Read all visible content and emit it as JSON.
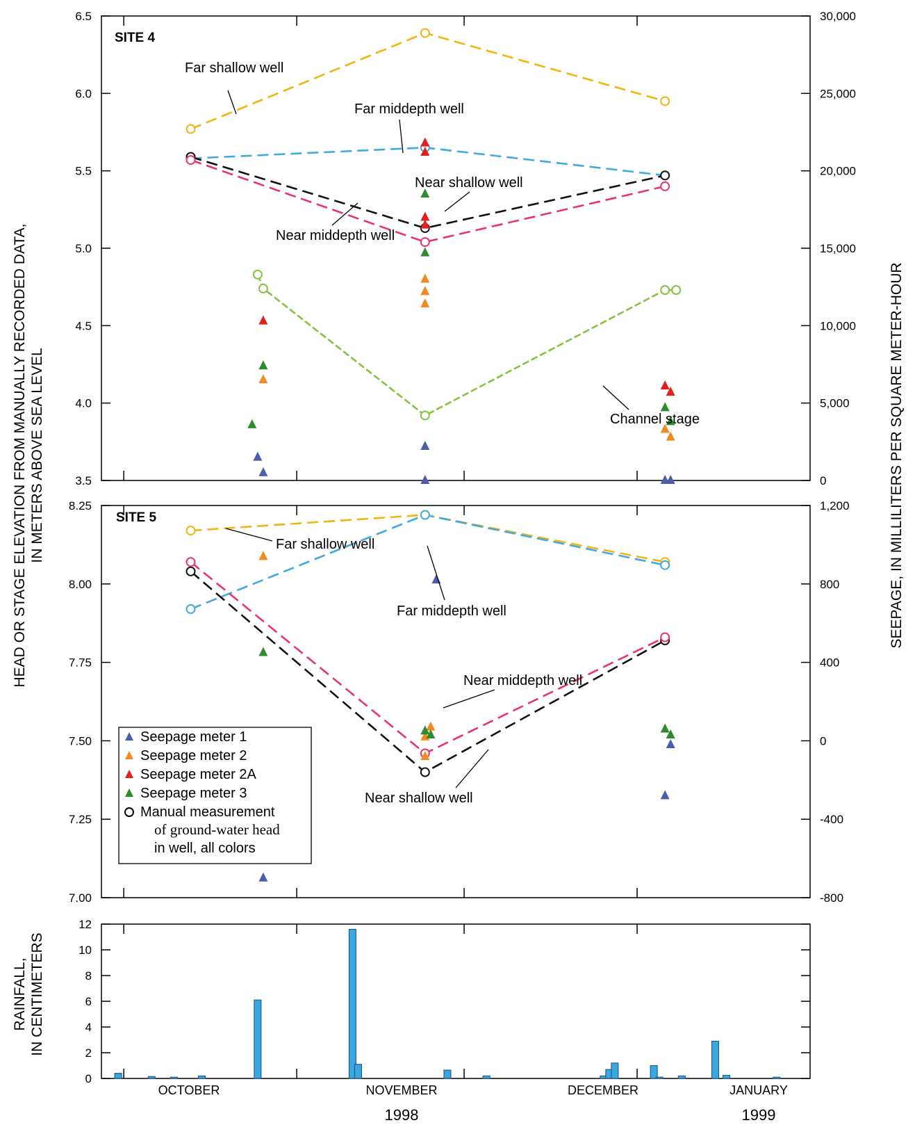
{
  "colors": {
    "far_shallow": "#f2b411",
    "far_middepth": "#3fa9e0",
    "near_shallow": "#111111",
    "near_middepth": "#e8336b",
    "channel": "#84c341",
    "meter1": "#4a5fa8",
    "meter2": "#f28a1c",
    "meter2a": "#e4201e",
    "meter3": "#2f8a2f",
    "rain_bar": "#3aa7de"
  },
  "axes": {
    "left_title_line1": "HEAD OR STAGE ELEVATION FROM MANUALLY RECORDED DATA,",
    "left_title_line2": "IN METERS ABOVE SEA LEVEL",
    "right_title": "SEEPAGE, IN MILLILITERS PER SQUARE METER-HOUR",
    "rain_title_line1": "RAINFALL,",
    "rain_title_line2": "IN CENTIMETERS",
    "months": [
      "OCTOBER",
      "NOVEMBER",
      "DECEMBER",
      "JANUARY"
    ],
    "years": [
      "1998",
      "1999"
    ]
  },
  "legend": {
    "meter1": "Seepage meter 1",
    "meter2": "Seepage meter 2",
    "meter2a": "Seepage meter 2A",
    "meter3": "Seepage meter 3",
    "manual_line1": "Manual measurement",
    "manual_line2": "of ground-water head",
    "manual_line3": "in well, all colors"
  },
  "chart_data": [
    {
      "type": "line",
      "title": "SITE 4",
      "y_left_ticks": [
        "6.5",
        "6.0",
        "5.5",
        "5.0",
        "4.5",
        "4.0",
        "3.5"
      ],
      "y_right_ticks": [
        "30,000",
        "25,000",
        "20,000",
        "15,000",
        "10,000",
        "5,000",
        "0"
      ],
      "ylim_left": [
        3.5,
        6.5
      ],
      "ylim_right": [
        0,
        30000
      ],
      "series": [
        {
          "name": "Far shallow well",
          "points": [
            [
              "1998-10-13",
              5.77
            ],
            [
              "1998-11-24",
              6.39
            ],
            [
              "1999-01-06",
              5.95
            ]
          ]
        },
        {
          "name": "Far middepth well",
          "points": [
            [
              "1998-10-13",
              5.58
            ],
            [
              "1998-11-24",
              5.65
            ],
            [
              "1999-01-06",
              5.47
            ]
          ]
        },
        {
          "name": "Near shallow well",
          "points": [
            [
              "1998-10-13",
              5.59
            ],
            [
              "1998-11-24",
              5.13
            ],
            [
              "1999-01-06",
              5.47
            ]
          ]
        },
        {
          "name": "Near middepth well",
          "points": [
            [
              "1998-10-13",
              5.57
            ],
            [
              "1998-11-24",
              5.04
            ],
            [
              "1999-01-06",
              5.4
            ]
          ]
        },
        {
          "name": "Channel stage",
          "points": [
            [
              "1998-10-25",
              4.83
            ],
            [
              "1998-10-26",
              4.74
            ],
            [
              "1998-11-24",
              3.92
            ],
            [
              "1999-01-06",
              4.73
            ],
            [
              "1999-01-08",
              4.73
            ]
          ]
        }
      ],
      "seepage": {
        "Seepage meter 1": [
          [
            "1998-10-25",
            1500
          ],
          [
            "1998-10-26",
            500
          ],
          [
            "1998-11-24",
            2200
          ],
          [
            "1998-11-24",
            0
          ],
          [
            "1999-01-06",
            0
          ],
          [
            "1999-01-07",
            0
          ]
        ],
        "Seepage meter 2": [
          [
            "1998-10-26",
            6500
          ],
          [
            "1998-11-24",
            13000
          ],
          [
            "1998-11-24",
            12200
          ],
          [
            "1998-11-24",
            11400
          ],
          [
            "1999-01-06",
            3300
          ],
          [
            "1999-01-07",
            2800
          ]
        ],
        "Seepage meter 2A": [
          [
            "1998-10-26",
            10300
          ],
          [
            "1998-11-24",
            21800
          ],
          [
            "1998-11-24",
            21200
          ],
          [
            "1998-11-24",
            17000
          ],
          [
            "1998-11-24",
            16500
          ],
          [
            "1999-01-06",
            6100
          ],
          [
            "1999-01-07",
            5700
          ]
        ],
        "Seepage meter 3": [
          [
            "1998-10-24",
            3600
          ],
          [
            "1998-10-26",
            7400
          ],
          [
            "1998-11-24",
            18500
          ],
          [
            "1998-11-24",
            14700
          ],
          [
            "1999-01-06",
            4700
          ],
          [
            "1999-01-07",
            3800
          ]
        ]
      },
      "annotations": [
        "Far shallow well",
        "Far middepth well",
        "Near shallow well",
        "Near middepth well",
        "Channel stage"
      ]
    },
    {
      "type": "line",
      "title": "SITE 5",
      "y_left_ticks": [
        "8.25",
        "8.00",
        "7.75",
        "7.50",
        "7.25",
        "7.00"
      ],
      "y_right_ticks": [
        "1,200",
        "800",
        "400",
        "0",
        "-400",
        "-800"
      ],
      "ylim_left": [
        7.0,
        8.25
      ],
      "ylim_right": [
        -800,
        1200
      ],
      "series": [
        {
          "name": "Far shallow well",
          "points": [
            [
              "1998-10-13",
              8.17
            ],
            [
              "1998-11-24",
              8.22
            ],
            [
              "1999-01-06",
              8.07
            ]
          ]
        },
        {
          "name": "Far middepth well",
          "points": [
            [
              "1998-10-13",
              7.92
            ],
            [
              "1998-11-24",
              8.22
            ],
            [
              "1999-01-06",
              8.06
            ]
          ]
        },
        {
          "name": "Near shallow well",
          "points": [
            [
              "1998-10-13",
              8.04
            ],
            [
              "1998-11-24",
              7.4
            ],
            [
              "1999-01-06",
              7.82
            ]
          ]
        },
        {
          "name": "Near middepth well",
          "points": [
            [
              "1998-10-13",
              8.07
            ],
            [
              "1998-11-24",
              7.46
            ],
            [
              "1999-01-06",
              7.83
            ]
          ]
        }
      ],
      "seepage": {
        "Seepage meter 1": [
          [
            "1998-10-26",
            -700
          ],
          [
            "1998-11-26",
            820
          ],
          [
            "1999-01-06",
            -280
          ],
          [
            "1999-01-07",
            -20
          ]
        ],
        "Seepage meter 2": [
          [
            "1998-10-26",
            940
          ],
          [
            "1998-11-24",
            -80
          ],
          [
            "1998-11-24",
            20
          ],
          [
            "1998-11-25",
            70
          ]
        ],
        "Seepage meter 2A": [],
        "Seepage meter 3": [
          [
            "1998-10-26",
            450
          ],
          [
            "1998-11-24",
            50
          ],
          [
            "1998-11-25",
            30
          ],
          [
            "1999-01-06",
            60
          ],
          [
            "1999-01-07",
            30
          ]
        ]
      },
      "annotations": [
        "Far shallow well",
        "Far middepth well",
        "Near middepth well",
        "Near shallow well"
      ]
    },
    {
      "type": "bar",
      "ylabel": "RAINFALL, IN CENTIMETERS",
      "y_ticks": [
        "12",
        "10",
        "8",
        "6",
        "4",
        "2",
        "0"
      ],
      "ylim": [
        0,
        12
      ],
      "x": [
        "1998-09-30",
        "1998-10-06",
        "1998-10-10",
        "1998-10-15",
        "1998-10-25",
        "1998-11-11",
        "1998-11-12",
        "1998-11-28",
        "1998-12-05",
        "1998-12-26",
        "1998-12-27",
        "1998-12-28",
        "1999-01-04",
        "1999-01-05",
        "1999-01-09",
        "1999-01-15",
        "1999-01-17",
        "1999-01-26"
      ],
      "values": [
        0.4,
        0.15,
        0.1,
        0.2,
        6.1,
        11.6,
        1.1,
        0.65,
        0.2,
        0.2,
        0.7,
        1.2,
        1.0,
        0.1,
        0.2,
        2.9,
        0.25,
        0.1
      ]
    }
  ]
}
